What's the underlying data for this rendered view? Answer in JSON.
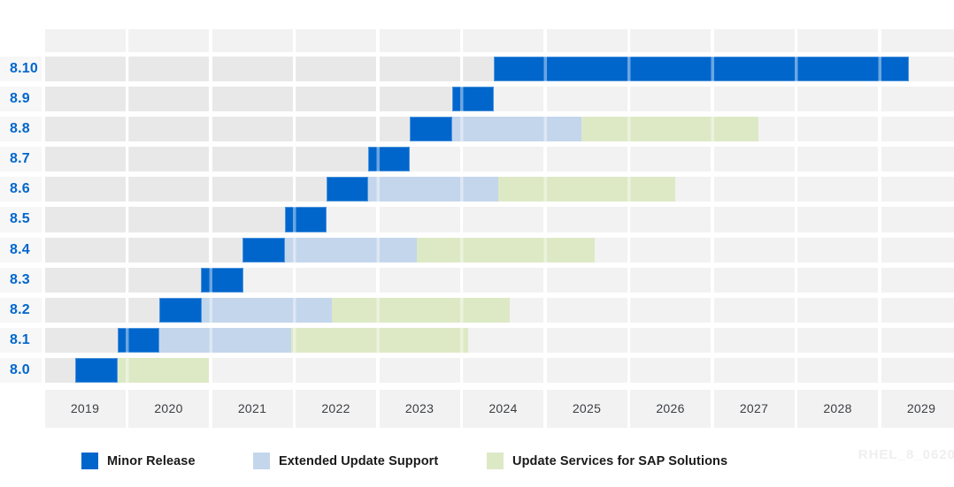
{
  "watermark": "RHEL_8_0620",
  "colors": {
    "minor": "#0066CC",
    "eus": "#C4D6EC",
    "sap": "#DDE9C5",
    "cell_past": "#E8E8E8",
    "cell_future": "#F2F2F2",
    "label_band": "#F7F7F7",
    "axis_band": "#F2F2F2",
    "row_label_text": "#0066CC",
    "axis_text": "#3B3E43",
    "legend_text": "#1A1A1A",
    "watermark_text": "#EFEFEF"
  },
  "legend": {
    "items": [
      {
        "id": "minor",
        "label": "Minor Release"
      },
      {
        "id": "eus",
        "label": "Extended Update Support"
      },
      {
        "id": "sap",
        "label": "Update Services for SAP Solutions"
      }
    ]
  },
  "chart_data": {
    "type": "gantt",
    "title": "",
    "x_axis": {
      "years": [
        "2019",
        "2020",
        "2021",
        "2022",
        "2023",
        "2024",
        "2025",
        "2026",
        "2027",
        "2028",
        "2029"
      ],
      "range": [
        2019,
        2030
      ]
    },
    "legend_position": "bottom",
    "rows": [
      {
        "label": "8.10",
        "segments": [
          {
            "type": "minor",
            "start": 2024.37,
            "end": 2029.33
          }
        ]
      },
      {
        "label": "8.9",
        "segments": [
          {
            "type": "minor",
            "start": 2023.87,
            "end": 2024.37
          }
        ]
      },
      {
        "label": "8.8",
        "segments": [
          {
            "type": "minor",
            "start": 2023.37,
            "end": 2023.87
          },
          {
            "type": "eus",
            "start": 2023.87,
            "end": 2025.42
          },
          {
            "type": "sap",
            "start": 2025.42,
            "end": 2027.53
          }
        ]
      },
      {
        "label": "8.7",
        "segments": [
          {
            "type": "minor",
            "start": 2022.87,
            "end": 2023.37
          }
        ]
      },
      {
        "label": "8.6",
        "segments": [
          {
            "type": "minor",
            "start": 2022.37,
            "end": 2022.87
          },
          {
            "type": "eus",
            "start": 2022.87,
            "end": 2024.42
          },
          {
            "type": "sap",
            "start": 2024.42,
            "end": 2026.54
          }
        ]
      },
      {
        "label": "8.5",
        "segments": [
          {
            "type": "minor",
            "start": 2021.87,
            "end": 2022.37
          }
        ]
      },
      {
        "label": "8.4",
        "segments": [
          {
            "type": "minor",
            "start": 2021.37,
            "end": 2021.87
          },
          {
            "type": "eus",
            "start": 2021.87,
            "end": 2023.45
          },
          {
            "type": "sap",
            "start": 2023.45,
            "end": 2025.58
          }
        ]
      },
      {
        "label": "8.3",
        "segments": [
          {
            "type": "minor",
            "start": 2020.87,
            "end": 2021.38
          }
        ]
      },
      {
        "label": "8.2",
        "segments": [
          {
            "type": "minor",
            "start": 2020.37,
            "end": 2020.88
          },
          {
            "type": "eus",
            "start": 2020.88,
            "end": 2022.43
          },
          {
            "type": "sap",
            "start": 2022.43,
            "end": 2024.56
          }
        ]
      },
      {
        "label": "8.1",
        "segments": [
          {
            "type": "minor",
            "start": 2019.87,
            "end": 2020.37
          },
          {
            "type": "eus",
            "start": 2020.37,
            "end": 2021.95
          },
          {
            "type": "sap",
            "start": 2021.95,
            "end": 2024.06
          }
        ]
      },
      {
        "label": "8.0",
        "segments": [
          {
            "type": "minor",
            "start": 2019.37,
            "end": 2019.87
          },
          {
            "type": "sap",
            "start": 2019.87,
            "end": 2020.96
          }
        ]
      }
    ]
  }
}
